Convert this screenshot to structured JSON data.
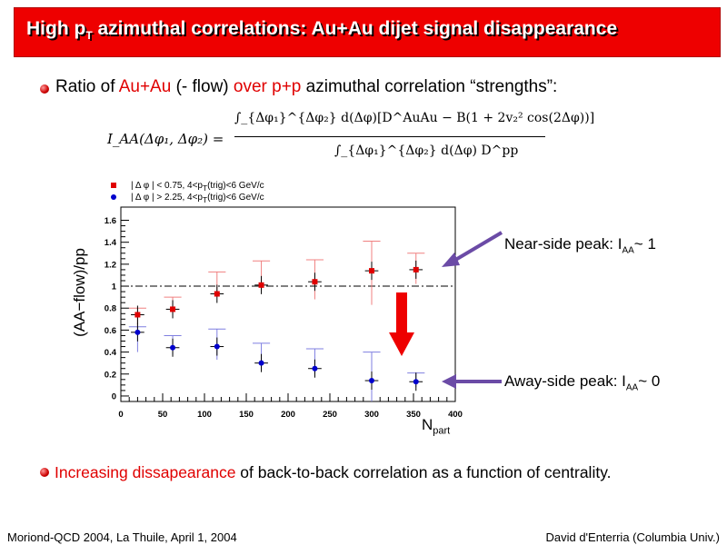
{
  "title": {
    "main": "High p",
    "sub": "T",
    "rest": " azimuthal correlations: Au+Au dijet signal disappearance"
  },
  "bullet1": {
    "a": "Ratio of ",
    "b": "Au+Au",
    "c": " (- flow) ",
    "d": "over p+p",
    "e": " azimuthal correlation “strengths”:"
  },
  "formula": {
    "lhs": "I_AA(Δφ₁, Δφ₂) =",
    "numerator": "∫_{Δφ₁}^{Δφ₂} d(Δφ)[D^AuAu − B(1 + 2v₂² cos(2Δφ))]",
    "denominator": "∫_{Δφ₁}^{Δφ₂} d(Δφ) D^pp"
  },
  "chart_data": {
    "type": "scatter",
    "xlabel": "N",
    "xlabel_sub": "part",
    "ylabel": "(AA−flow)/pp",
    "xlim": [
      0,
      400
    ],
    "ylim": [
      -0.05,
      1.72
    ],
    "xticks": [
      0,
      50,
      100,
      150,
      200,
      250,
      300,
      350,
      400
    ],
    "yticks": [
      0,
      0.2,
      0.4,
      0.6,
      0.8,
      1,
      1.2,
      1.4,
      1.6
    ],
    "ytick_labels": [
      "0",
      "0.2",
      "0.4",
      "0.6",
      "0.8",
      "1",
      "1.2",
      "1.4",
      "1.6"
    ],
    "reference_line": 1,
    "series": [
      {
        "name": "| Δ φ | < 0.75, 4<pT(trig)<6 GeV/c",
        "marker": "square",
        "color": "#e00000",
        "x": [
          20,
          62,
          115,
          168,
          232,
          300,
          353
        ],
        "y": [
          0.74,
          0.79,
          0.93,
          1.01,
          1.04,
          1.14,
          1.15
        ],
        "err_hi": [
          0.8,
          0.9,
          1.13,
          1.23,
          1.24,
          1.41,
          1.3
        ],
        "err_lo": [
          0.62,
          0.74,
          0.9,
          0.96,
          0.88,
          0.83,
          1.02
        ],
        "xerr": 8
      },
      {
        "name": "| Δ φ | > 2.25, 4<pT(trig)<6 GeV/c",
        "marker": "circle",
        "color": "#0000cc",
        "x": [
          20,
          62,
          115,
          168,
          232,
          300,
          353
        ],
        "y": [
          0.58,
          0.44,
          0.45,
          0.3,
          0.25,
          0.14,
          0.13
        ],
        "err_hi": [
          0.63,
          0.55,
          0.61,
          0.48,
          0.43,
          0.4,
          0.21
        ],
        "err_lo": [
          0.4,
          0.38,
          0.33,
          0.24,
          0.2,
          -0.1,
          0.08
        ],
        "xerr": 8
      }
    ]
  },
  "legend": {
    "near": "| Δ φ | < 0.75, 4<p",
    "near_sub": "T",
    "near_rest": "(trig)<6 GeV/c",
    "away": "| Δ φ | > 2.25, 4<p",
    "away_sub": "T",
    "away_rest": "(trig)<6 GeV/c"
  },
  "annotations": {
    "near": {
      "a": "Near-side peak: I",
      "sub": "AA",
      "b": "~ 1"
    },
    "away": {
      "a": "Away-side peak: I",
      "sub": "AA",
      "b": "~ 0"
    }
  },
  "bullet2": {
    "a": "Increasing dissapearance",
    "b": " of back-to-back correlation as a function of centrality."
  },
  "footer": {
    "left": "Moriond-QCD 2004, La Thuile, April 1, 2004",
    "right": "David d'Enterria (Columbia Univ.)"
  },
  "colors": {
    "title_bg": "#ee0000",
    "accent_red": "#e00000",
    "series_blue": "#0000cc",
    "arrow_purple": "#6b4ba6"
  }
}
